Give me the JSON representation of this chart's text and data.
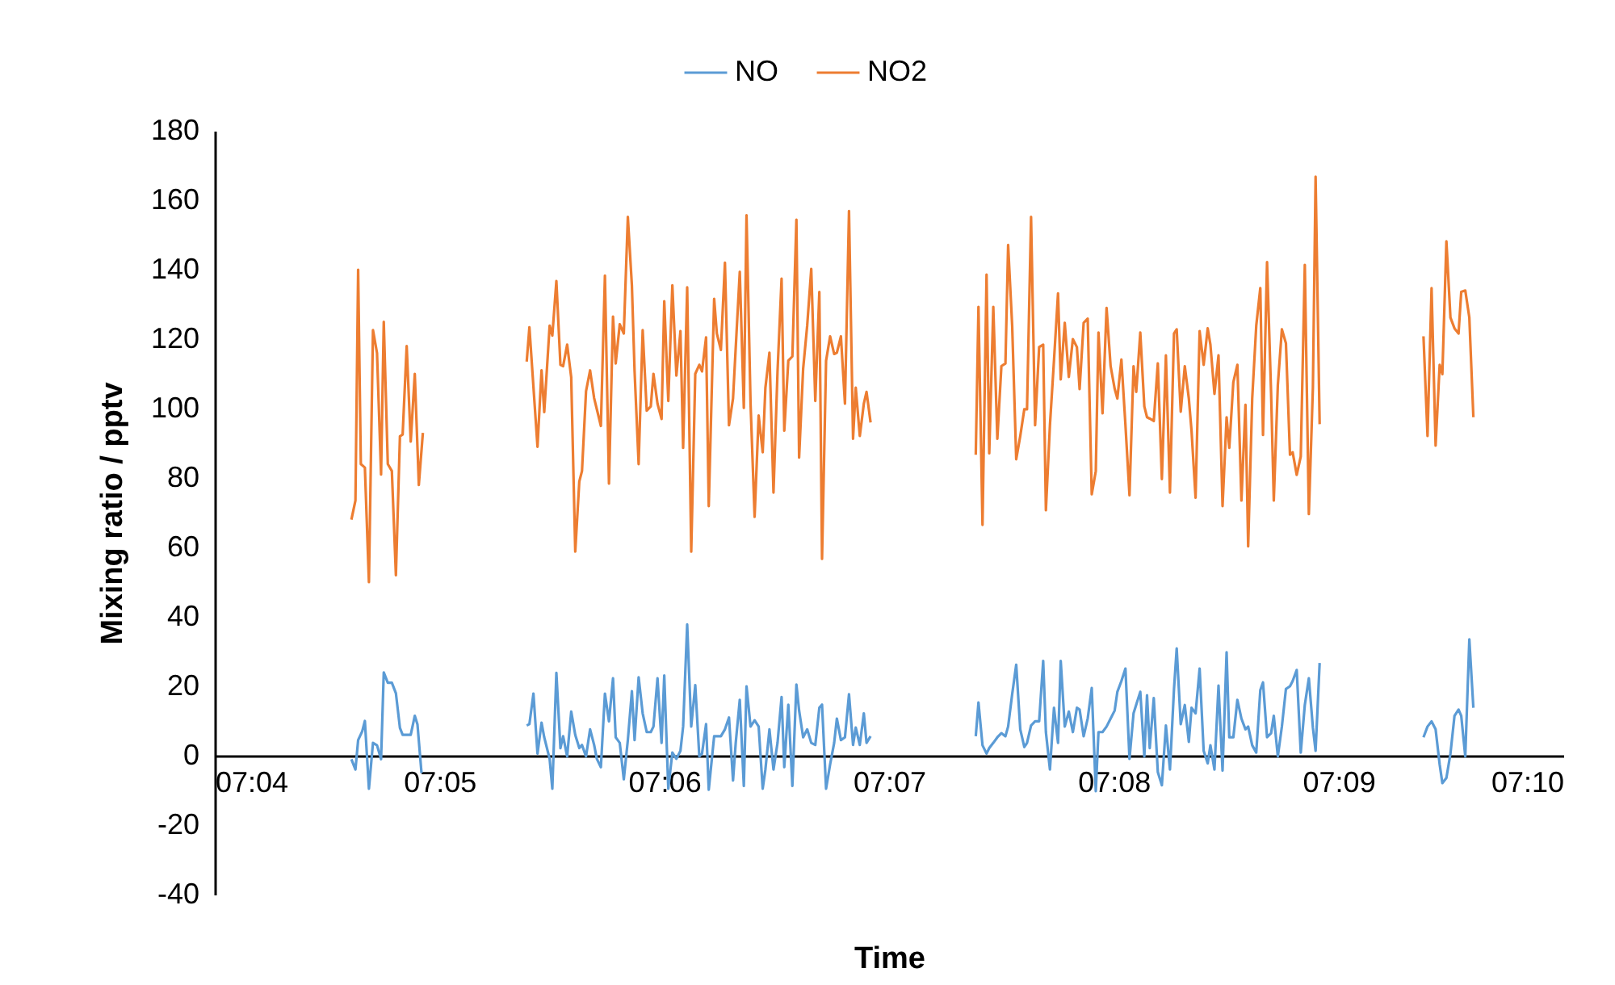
{
  "chart_data": {
    "type": "line",
    "xlabel": "Time",
    "ylabel": "Mixing ratio / pptv",
    "legend": "top",
    "grid": false,
    "xlim": [
      7.06667,
      7.16667
    ],
    "xticks": [
      {
        "value": 7.06667,
        "label": "07:04"
      },
      {
        "value": 7.08333,
        "label": "07:05"
      },
      {
        "value": 7.1,
        "label": "07:06"
      },
      {
        "value": 7.11667,
        "label": "07:07"
      },
      {
        "value": 7.13333,
        "label": "07:08"
      },
      {
        "value": 7.15,
        "label": "07:09"
      },
      {
        "value": 7.16667,
        "label": "07:10"
      }
    ],
    "ylim": [
      -40,
      180
    ],
    "yticks": [
      -40,
      -20,
      0,
      20,
      40,
      60,
      80,
      100,
      120,
      140,
      160,
      180
    ],
    "series": [
      {
        "name": "NO",
        "color": "#5b9bd5",
        "x": [
          7.0768,
          7.0771,
          7.0773,
          7.0776,
          7.0778,
          7.0781,
          7.0784,
          7.0787,
          7.079,
          7.0792,
          7.0795,
          7.0798,
          7.0801,
          7.0804,
          7.0806,
          7.0812,
          7.0815,
          7.0817,
          7.082,
          7.085,
          7.0898,
          7.09,
          7.0903,
          7.0906,
          7.0909,
          7.0911,
          7.0915,
          7.0917,
          7.092,
          7.0923,
          7.0925,
          7.0928,
          7.0931,
          7.0934,
          7.0937,
          7.0939,
          7.0942,
          7.0945,
          7.0948,
          7.095,
          7.0953,
          7.0956,
          7.0959,
          7.0962,
          7.0964,
          7.0967,
          7.097,
          7.0973,
          7.0976,
          7.0978,
          7.0981,
          7.0984,
          7.0987,
          7.099,
          7.0992,
          7.0995,
          7.0998,
          7.1,
          7.1003,
          7.1006,
          7.1009,
          7.1012,
          7.1014,
          7.1017,
          7.102,
          7.1023,
          7.1026,
          7.1028,
          7.1031,
          7.1033,
          7.1037,
          7.1039,
          7.1042,
          7.1045,
          7.1048,
          7.1051,
          7.1053,
          7.1056,
          7.1059,
          7.1061,
          7.1064,
          7.1067,
          7.107,
          7.1073,
          7.1075,
          7.1078,
          7.1081,
          7.1084,
          7.1087,
          7.1089,
          7.1092,
          7.1095,
          7.1098,
          7.11,
          7.1103,
          7.1106,
          7.1109,
          7.1112,
          7.1115,
          7.1117,
          7.112,
          7.1123,
          7.1126,
          7.1128,
          7.1131,
          7.1134,
          7.1137,
          7.114,
          7.1142,
          7.1145,
          7.1148,
          7.115,
          7.1153,
          7.118,
          7.1231,
          7.1233,
          7.1236,
          7.1239,
          7.1241,
          7.1244,
          7.1247,
          7.125,
          7.1253,
          7.1255,
          7.1258,
          7.1261,
          7.1264,
          7.1267,
          7.1269,
          7.1272,
          7.1275,
          7.1278,
          7.1281,
          7.1283,
          7.1286,
          7.1289,
          7.1292,
          7.1294,
          7.1297,
          7.13,
          7.1303,
          7.1306,
          7.1308,
          7.1311,
          7.1314,
          7.1317,
          7.132,
          7.1322,
          7.1325,
          7.1328,
          7.1331,
          7.1334,
          7.1336,
          7.1339,
          7.1342,
          7.1345,
          7.1348,
          7.135,
          7.1353,
          7.1356,
          7.1358,
          7.136,
          7.1363,
          7.1366,
          7.1369,
          7.1372,
          7.1375,
          7.1378,
          7.138,
          7.1383,
          7.1386,
          7.1389,
          7.1391,
          7.1394,
          7.1397,
          7.14,
          7.1403,
          7.1405,
          7.1408,
          7.1411,
          7.1414,
          7.1417,
          7.1419,
          7.1422,
          7.1425,
          7.1428,
          7.1431,
          7.1433,
          7.1436,
          7.1439,
          7.1442,
          7.1444,
          7.1447,
          7.145,
          7.1452,
          7.1455,
          7.1458,
          7.1461,
          7.1464,
          7.1466,
          7.1469,
          7.1472,
          7.1475,
          7.1478,
          7.1481,
          7.1483,
          7.1486,
          7.152,
          7.1563,
          7.1566,
          7.1569,
          7.1572,
          7.1575,
          7.1577,
          7.158,
          7.1583,
          7.1586,
          7.1589,
          7.1591,
          7.1594,
          7.1597,
          7.16
        ],
        "values": [
          -1,
          -4,
          4.5,
          7,
          10,
          -9.5,
          3.7,
          3,
          -1,
          24,
          21,
          21,
          18,
          8,
          6,
          6,
          11.5,
          9,
          -5,
          null,
          8.7,
          9.1,
          17.9,
          0.6,
          9.5,
          5.3,
          -0.9,
          -9.5,
          23.9,
          2.2,
          5.6,
          -0.2,
          12.7,
          6,
          2.2,
          3.1,
          -0.2,
          7.6,
          3.1,
          -0.9,
          -3.3,
          17.9,
          9.9,
          22.3,
          5.3,
          3.7,
          -6.8,
          4.5,
          18.6,
          4.5,
          22.6,
          12.2,
          6.8,
          6.8,
          8.4,
          22.3,
          3.7,
          23.1,
          -9.5,
          0.9,
          -0.9,
          1.4,
          8.4,
          37.8,
          8.4,
          20.3,
          -0.2,
          0.6,
          9.1,
          -9.8,
          5.6,
          5.6,
          5.6,
          7.6,
          11,
          -7.1,
          3.7,
          16.1,
          -8.7,
          20,
          8.4,
          10.2,
          8.4,
          -9.5,
          -4,
          7.6,
          -4,
          3.7,
          16.9,
          -3.3,
          14.7,
          -8.7,
          20.5,
          13,
          5.3,
          7.6,
          3.7,
          3.1,
          13.8,
          14.7,
          -9.5,
          -2.5,
          3.7,
          10.7,
          4.5,
          5.3,
          17.7,
          3.1,
          8.1,
          3.1,
          12.2,
          3.7,
          5.6,
          null,
          5.6,
          15.3,
          3,
          0.6,
          2.2,
          3.7,
          5.3,
          6.5,
          5.6,
          8.4,
          17.7,
          26.2,
          7.6,
          2.5,
          3.7,
          8.7,
          9.9,
          9.9,
          27.3,
          6.8,
          -4,
          13.8,
          3.7,
          27.3,
          8.4,
          12.7,
          6.8,
          13.8,
          13.3,
          5.6,
          10.7,
          19.5,
          -10.2,
          6.8,
          6.8,
          8.4,
          10.7,
          13,
          18.4,
          21.5,
          25.1,
          -0.9,
          12.2,
          14.7,
          18.4,
          -0.2,
          17.4,
          2.2,
          16.6,
          -4.7,
          -8.5,
          8.7,
          -4,
          19.2,
          30.9,
          9.1,
          14.6,
          4,
          13.8,
          12.2,
          25.1,
          1.4,
          -2.2,
          3,
          -4,
          20.2,
          -4.3,
          29.8,
          5.3,
          5.3,
          16.1,
          10.7,
          7.6,
          8.4,
          3,
          0.9,
          18.9,
          21.1,
          5.3,
          6.5,
          11.5,
          -0.2,
          8.4,
          19.2,
          20,
          21.5,
          24.7,
          0.9,
          14.6,
          22.3,
          8.1,
          1.4,
          26.7,
          null,
          5.3,
          8.4,
          9.9,
          7.6,
          -2.5,
          -7.9,
          -6.4,
          0.6,
          11.5,
          13.3,
          11.5,
          -0.2,
          33.5,
          13.8
        ]
      },
      {
        "name": "NO2",
        "color": "#ed7d31",
        "x": [
          7.0768,
          7.0771,
          7.0773,
          7.0775,
          7.0778,
          7.0781,
          7.0784,
          7.0787,
          7.079,
          7.0792,
          7.0795,
          7.0798,
          7.0801,
          7.0804,
          7.0806,
          7.0809,
          7.0812,
          7.0815,
          7.0818,
          7.0821,
          7.085,
          7.0898,
          7.09,
          7.0906,
          7.0909,
          7.0911,
          7.0915,
          7.0917,
          7.092,
          7.0923,
          7.0925,
          7.0928,
          7.0931,
          7.0934,
          7.0937,
          7.0939,
          7.0942,
          7.0945,
          7.0948,
          7.0953,
          7.0956,
          7.0959,
          7.0962,
          7.0964,
          7.0967,
          7.097,
          7.0973,
          7.0976,
          7.0978,
          7.0981,
          7.0984,
          7.0987,
          7.099,
          7.0992,
          7.0995,
          7.0998,
          7.1,
          7.1003,
          7.1006,
          7.1009,
          7.1012,
          7.1014,
          7.1017,
          7.102,
          7.1023,
          7.1026,
          7.1028,
          7.1031,
          7.1033,
          7.1037,
          7.1039,
          7.1042,
          7.1045,
          7.1048,
          7.1051,
          7.1056,
          7.1059,
          7.1061,
          7.1064,
          7.1067,
          7.107,
          7.1073,
          7.1075,
          7.1078,
          7.1081,
          7.1084,
          7.1087,
          7.1089,
          7.1092,
          7.1095,
          7.1098,
          7.11,
          7.1103,
          7.1106,
          7.1109,
          7.1112,
          7.1115,
          7.1117,
          7.112,
          7.1123,
          7.1126,
          7.1128,
          7.1131,
          7.1134,
          7.1137,
          7.114,
          7.1142,
          7.1145,
          7.1148,
          7.115,
          7.1153,
          7.118,
          7.1231,
          7.1233,
          7.1236,
          7.1239,
          7.1241,
          7.1244,
          7.1247,
          7.125,
          7.1253,
          7.1255,
          7.1258,
          7.1261,
          7.1264,
          7.1267,
          7.1269,
          7.1272,
          7.1275,
          7.1278,
          7.1281,
          7.1283,
          7.1286,
          7.1289,
          7.1292,
          7.1294,
          7.1297,
          7.13,
          7.1303,
          7.1306,
          7.1308,
          7.1311,
          7.1314,
          7.1317,
          7.132,
          7.1322,
          7.1325,
          7.1328,
          7.1331,
          7.1334,
          7.1336,
          7.1339,
          7.1342,
          7.1345,
          7.1348,
          7.135,
          7.1353,
          7.1356,
          7.1358,
          7.136,
          7.1363,
          7.1366,
          7.1369,
          7.1372,
          7.1375,
          7.1378,
          7.138,
          7.1383,
          7.1386,
          7.1389,
          7.1391,
          7.1394,
          7.1397,
          7.14,
          7.1403,
          7.1405,
          7.1408,
          7.1411,
          7.1414,
          7.1417,
          7.1419,
          7.1422,
          7.1425,
          7.1428,
          7.1431,
          7.1433,
          7.1436,
          7.1439,
          7.1442,
          7.1444,
          7.1447,
          7.145,
          7.1452,
          7.1455,
          7.1458,
          7.1461,
          7.1464,
          7.1466,
          7.1469,
          7.1472,
          7.1475,
          7.1478,
          7.1481,
          7.1483,
          7.1486,
          7.152,
          7.1563,
          7.1566,
          7.1569,
          7.1572,
          7.1575,
          7.1577,
          7.158,
          7.1583,
          7.1586,
          7.1589,
          7.1591,
          7.1594,
          7.1597,
          7.16
        ],
        "values": [
          68,
          73.5,
          140,
          84,
          83,
          50,
          122.6,
          116,
          81,
          125,
          84,
          82,
          52,
          92,
          92.5,
          118,
          90.5,
          110,
          78,
          93,
          null,
          113.5,
          123.4,
          89,
          111,
          99,
          123.9,
          121,
          136.7,
          112.6,
          112.2,
          118.4,
          109,
          58.8,
          79,
          82,
          105,
          111,
          103,
          95,
          138.3,
          78.4,
          126.5,
          113,
          124.3,
          121.6,
          155.2,
          135.5,
          110.7,
          84,
          122.6,
          99.4,
          100.6,
          110,
          101.4,
          97,
          130.9,
          102.2,
          135.5,
          109.5,
          122.3,
          88.7,
          134.9,
          58.8,
          110,
          112.6,
          110.7,
          120.5,
          71.9,
          131.6,
          121.6,
          116.9,
          142,
          95.2,
          102.9,
          139.4,
          100.2,
          155.7,
          101.4,
          68.8,
          98,
          87.4,
          106,
          116.1,
          75.8,
          110.7,
          137.4,
          93.6,
          113.8,
          115,
          154.4,
          85.9,
          111.5,
          123.9,
          140.2,
          102.2,
          133.6,
          56.7,
          113.8,
          120.8,
          115.7,
          116.1,
          120.8,
          101.4,
          156.9,
          91.3,
          106,
          92.1,
          101.4,
          104.8,
          96,
          null,
          86.7,
          129.3,
          66.5,
          138.6,
          87.1,
          129.3,
          91.3,
          112.2,
          113,
          147.1,
          123.9,
          85.4,
          92.1,
          99.8,
          99.8,
          155.2,
          95.2,
          117.7,
          118.4,
          70.7,
          95.2,
          113.8,
          133.2,
          108.4,
          124.7,
          109.1,
          120,
          117.7,
          105.6,
          124.7,
          125.9,
          75.3,
          82,
          121.9,
          98.6,
          129,
          112.2,
          105.7,
          102.9,
          114.1,
          95.2,
          75,
          112.2,
          104.8,
          121.9,
          100.6,
          97.5,
          97.1,
          96.4,
          113,
          79.7,
          115.3,
          75.8,
          121.6,
          122.8,
          99.1,
          112.2,
          102.9,
          93.6,
          74.3,
          122.3,
          112.6,
          123.1,
          118.4,
          104.2,
          115.3,
          71.9,
          97.5,
          88.7,
          107.6,
          112.6,
          73.5,
          101.1,
          60.3,
          102.9,
          123.9,
          134.7,
          92.4,
          142.2,
          104.5,
          73.5,
          106.8,
          122.8,
          118.8,
          86.7,
          87.4,
          80.9,
          86.2,
          141.4,
          69.6,
          106,
          166.8,
          95.5,
          null,
          120.8,
          92.1,
          134.7,
          89.3,
          112.6,
          109.9,
          148.2,
          126.2,
          123.1,
          121.6,
          133.6,
          134,
          126.2,
          97.5
        ]
      }
    ]
  }
}
